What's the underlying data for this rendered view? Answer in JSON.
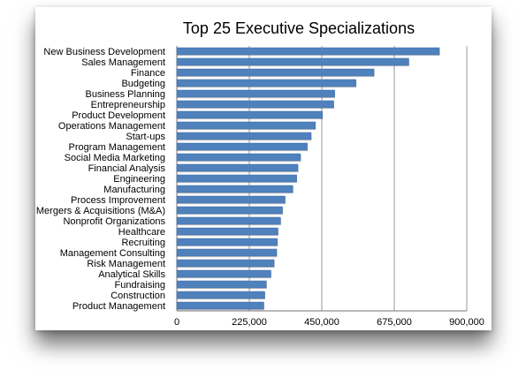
{
  "chart_data": {
    "type": "bar",
    "orientation": "horizontal",
    "title": "Top 25 Executive Specializations",
    "xlabel": "",
    "ylabel": "",
    "xlim": [
      0,
      900000
    ],
    "x_ticks": [
      "0",
      "225,000",
      "450,000",
      "675,000",
      "900,000"
    ],
    "grid": "vertical",
    "legend": "none",
    "bar_color": "#4f81bd",
    "categories": [
      "New Business Development",
      "Sales Management",
      "Finance",
      "Budgeting",
      "Business Planning",
      "Entrepreneurship",
      "Product Development",
      "Operations Management",
      "Start-ups",
      "Program Management",
      "Social Media Marketing",
      "Financial Analysis",
      "Engineering",
      "Manufacturing",
      "Process Improvement",
      "Mergers & Acquisitions (M&A)",
      "Nonprofit Organizations",
      "Healthcare",
      "Recruiting",
      "Management Consulting",
      "Risk Management",
      "Analytical Skills",
      "Fundraising",
      "Construction",
      "Product Management"
    ],
    "values": [
      815000,
      720000,
      612000,
      556000,
      490000,
      487000,
      452000,
      430000,
      417000,
      405000,
      384000,
      376000,
      372000,
      360000,
      336000,
      328000,
      322000,
      314000,
      312000,
      310000,
      302000,
      292000,
      278000,
      273000,
      270000
    ]
  }
}
